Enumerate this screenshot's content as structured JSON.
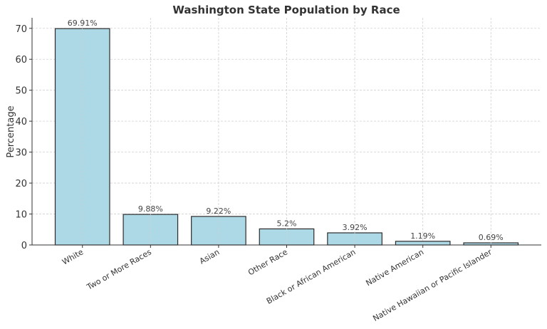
{
  "chart_data": {
    "type": "bar",
    "title": "Washington State Population by Race",
    "xlabel": "",
    "ylabel": "Percentage",
    "categories": [
      "White",
      "Two or More Races",
      "Asian",
      "Other Race",
      "Black or African American",
      "Native American",
      "Native Hawaiian or Pacific Islander"
    ],
    "values": [
      69.91,
      9.88,
      9.22,
      5.2,
      3.92,
      1.19,
      0.69
    ],
    "data_labels": [
      "69.91%",
      "9.88%",
      "9.22%",
      "5.2%",
      "3.92%",
      "1.19%",
      "0.69%"
    ],
    "ylim": [
      0,
      73.4
    ],
    "yticks": [
      0,
      10,
      20,
      30,
      40,
      50,
      60,
      70
    ],
    "grid": true,
    "colors": {
      "bar": "#add8e6",
      "edge": "#2b2b2b",
      "grid": "#d0d0d0"
    }
  }
}
